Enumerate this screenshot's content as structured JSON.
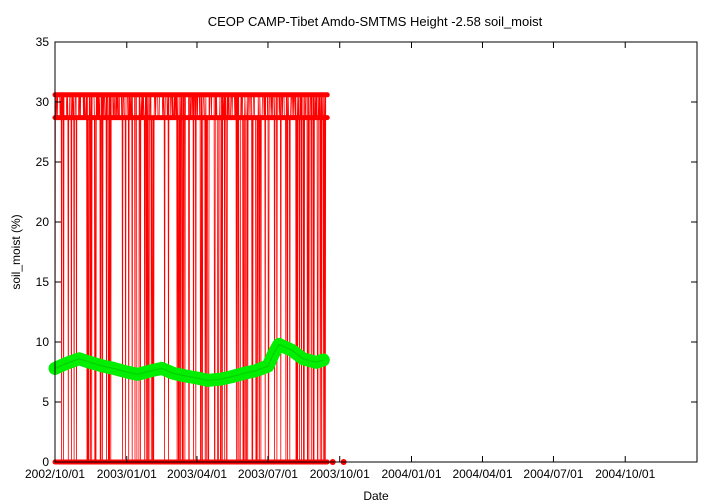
{
  "chart_data": {
    "type": "line",
    "title": "CEOP CAMP-Tibet Amdo-SMTMS Height -2.58 soil_moist",
    "xlabel": "Date",
    "ylabel": "soil_moist (%)",
    "ylim": [
      0,
      35
    ],
    "xlim": [
      "2002-10-01",
      "2005-01-01"
    ],
    "yticks": [
      0,
      5,
      10,
      15,
      20,
      25,
      30,
      35
    ],
    "xticks": [
      "2002/10/01",
      "2003/01/01",
      "2003/04/01",
      "2003/07/01",
      "2003/10/01",
      "2004/01/01",
      "2004/04/01",
      "2004/07/01",
      "2004/10/01"
    ],
    "grid": false,
    "colors": {
      "flagged": "#ff0000",
      "valid": "#00ee00",
      "axis": "#000000"
    },
    "series": [
      {
        "color": "#00ee00",
        "x": [
          "2002-10-01",
          "2002-10-15",
          "2002-11-01",
          "2002-11-15",
          "2002-12-01",
          "2002-12-15",
          "2003-01-01",
          "2003-01-15",
          "2003-02-01",
          "2003-02-15",
          "2003-03-01",
          "2003-03-15",
          "2003-04-01",
          "2003-04-15",
          "2003-05-01",
          "2003-05-15",
          "2003-06-01",
          "2003-06-15",
          "2003-07-01",
          "2003-07-08",
          "2003-07-15",
          "2003-08-01",
          "2003-08-15",
          "2003-09-01",
          "2003-09-10"
        ],
        "values": [
          7.8,
          8.2,
          8.6,
          8.3,
          8.0,
          7.8,
          7.5,
          7.3,
          7.6,
          7.8,
          7.4,
          7.2,
          7.0,
          6.8,
          6.9,
          7.1,
          7.4,
          7.6,
          8.0,
          9.0,
          9.8,
          9.3,
          8.6,
          8.3,
          8.5
        ]
      },
      {
        "color": "#ff0000",
        "x_start": "2002-10-01",
        "x_end": "2003-09-15",
        "levels": [
          0,
          28.7,
          30.6
        ],
        "dense_interval": [
          "2003-05-21",
          "2003-06-05"
        ]
      }
    ]
  }
}
